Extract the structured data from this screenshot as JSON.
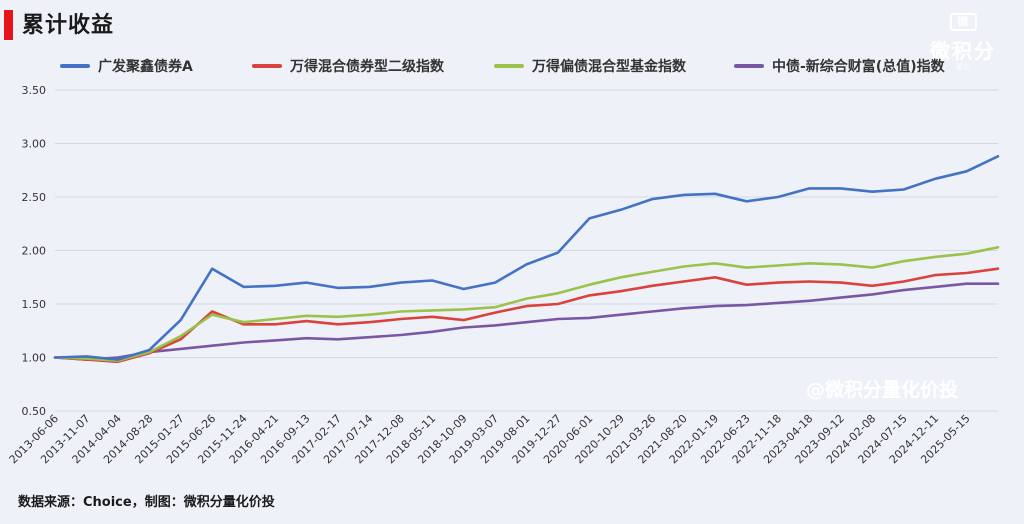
{
  "header": {
    "title": "累计收益"
  },
  "logo": {
    "mark": "微",
    "name": "微积分",
    "sub": "基金"
  },
  "watermark": "@微积分量化价投",
  "source": "数据来源：Choice，制图：微积分量化价投",
  "chart_data": {
    "type": "line",
    "ylim": [
      0.5,
      3.5
    ],
    "yticks": [
      "0.50",
      "1.00",
      "1.50",
      "2.00",
      "2.50",
      "3.00",
      "3.50"
    ],
    "grid": "horizontal",
    "legend": "top",
    "x": [
      "2013-06-06",
      "2013-11-07",
      "2014-04-04",
      "2014-08-28",
      "2015-01-27",
      "2015-06-26",
      "2015-11-24",
      "2016-04-21",
      "2016-09-13",
      "2017-02-17",
      "2017-07-14",
      "2017-12-08",
      "2018-05-11",
      "2018-10-09",
      "2019-03-07",
      "2019-08-01",
      "2019-12-27",
      "2020-06-01",
      "2020-10-29",
      "2021-03-26",
      "2021-08-20",
      "2022-01-19",
      "2022-06-23",
      "2022-11-18",
      "2023-04-18",
      "2023-09-12",
      "2024-02-08",
      "2024-07-15",
      "2024-12-11",
      "2025-05-15",
      "2025-10-10"
    ],
    "xticks": [
      "2013-06-06",
      "2013-11-07",
      "2014-04-04",
      "2014-08-28",
      "2015-01-27",
      "2015-06-26",
      "2015-11-24",
      "2016-04-21",
      "2016-09-13",
      "2017-02-17",
      "2017-07-14",
      "2017-12-08",
      "2018-05-11",
      "2018-10-09",
      "2019-03-07",
      "2019-08-01",
      "2019-12-27",
      "2020-06-01",
      "2020-10-29",
      "2021-03-26",
      "2021-08-20",
      "2022-01-19",
      "2022-06-23",
      "2022-11-18",
      "2023-04-18",
      "2023-09-12",
      "2024-02-08",
      "2024-07-15",
      "2024-12-11",
      "2025-05-15"
    ],
    "series": [
      {
        "name": "广发聚鑫债券A",
        "color": "#4472c4",
        "values": [
          1.0,
          1.01,
          0.98,
          1.07,
          1.35,
          1.83,
          1.66,
          1.67,
          1.7,
          1.65,
          1.66,
          1.7,
          1.72,
          1.64,
          1.7,
          1.87,
          1.98,
          2.3,
          2.38,
          2.48,
          2.52,
          2.53,
          2.46,
          2.5,
          2.58,
          2.58,
          2.55,
          2.57,
          2.67,
          2.74,
          2.88
        ]
      },
      {
        "name": "万得混合债券型二级指数",
        "color": "#d9423d",
        "values": [
          1.0,
          0.98,
          0.96,
          1.04,
          1.17,
          1.43,
          1.31,
          1.31,
          1.34,
          1.31,
          1.33,
          1.36,
          1.38,
          1.35,
          1.42,
          1.48,
          1.5,
          1.58,
          1.62,
          1.67,
          1.71,
          1.75,
          1.68,
          1.7,
          1.71,
          1.7,
          1.67,
          1.71,
          1.77,
          1.79,
          1.83
        ]
      },
      {
        "name": "万得偏债混合型基金指数",
        "color": "#9bc24a",
        "values": [
          1.0,
          0.99,
          0.97,
          1.05,
          1.2,
          1.4,
          1.33,
          1.36,
          1.39,
          1.38,
          1.4,
          1.43,
          1.44,
          1.45,
          1.47,
          1.55,
          1.6,
          1.68,
          1.75,
          1.8,
          1.85,
          1.88,
          1.84,
          1.86,
          1.88,
          1.87,
          1.84,
          1.9,
          1.94,
          1.97,
          2.03
        ]
      },
      {
        "name": "中债-新综合财富(总值)指数",
        "color": "#7a57a3",
        "values": [
          1.0,
          0.98,
          1.0,
          1.05,
          1.08,
          1.11,
          1.14,
          1.16,
          1.18,
          1.17,
          1.19,
          1.21,
          1.24,
          1.28,
          1.3,
          1.33,
          1.36,
          1.37,
          1.4,
          1.43,
          1.46,
          1.48,
          1.49,
          1.51,
          1.53,
          1.56,
          1.59,
          1.63,
          1.66,
          1.69,
          1.69
        ]
      }
    ]
  }
}
